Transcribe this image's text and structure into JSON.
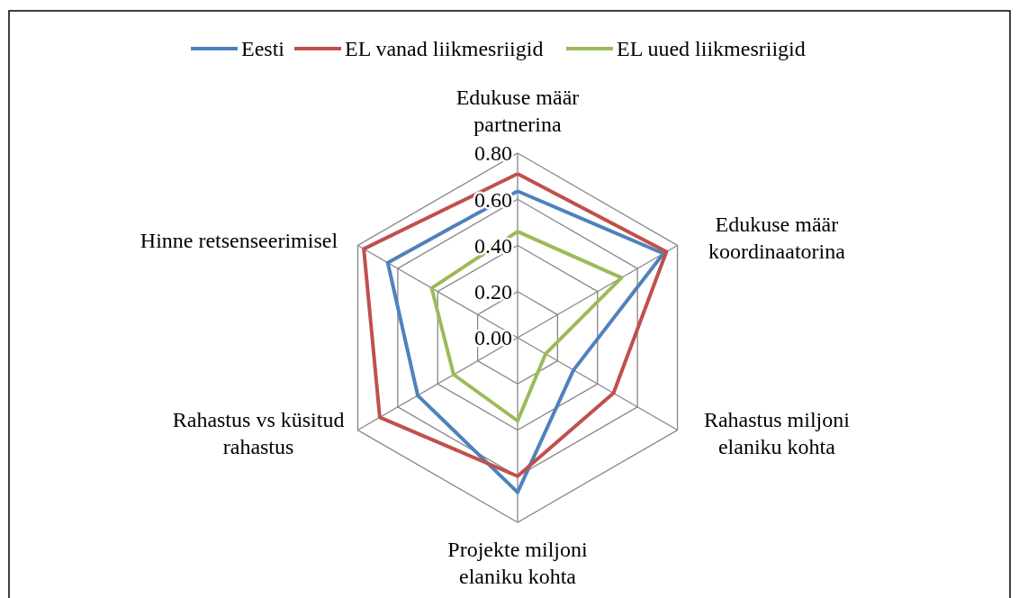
{
  "chart_data": {
    "type": "radar",
    "categories": [
      "Edukuse määr partnerina",
      "Edukuse määr koordinaatorina",
      "Rahastus miljoni elaniku kohta",
      "Projekte miljoni elaniku kohta",
      "Rahastus vs küsitud rahastus",
      "Hinne retsenseerimisel"
    ],
    "series": [
      {
        "name": "Eesti",
        "color": "#4f81bd",
        "values": [
          0.635,
          0.73,
          0.28,
          0.67,
          0.5,
          0.65
        ]
      },
      {
        "name": "EL vanad liikmesriigid",
        "color": "#c0504d",
        "values": [
          0.71,
          0.745,
          0.48,
          0.6,
          0.69,
          0.77
        ]
      },
      {
        "name": "EL uued liikmesriigid",
        "color": "#9bbb59",
        "values": [
          0.46,
          0.52,
          0.14,
          0.36,
          0.32,
          0.43
        ]
      }
    ],
    "ylim": [
      0,
      0.8
    ],
    "yticks": [
      {
        "value": 0,
        "label": "0.00"
      },
      {
        "value": 0.2,
        "label": "0.20"
      },
      {
        "value": 0.4,
        "label": "0.40"
      },
      {
        "value": 0.6,
        "label": "0.60"
      },
      {
        "value": 0.8,
        "label": "0.80"
      }
    ],
    "grid": true,
    "legend": "top",
    "marker": "none"
  }
}
